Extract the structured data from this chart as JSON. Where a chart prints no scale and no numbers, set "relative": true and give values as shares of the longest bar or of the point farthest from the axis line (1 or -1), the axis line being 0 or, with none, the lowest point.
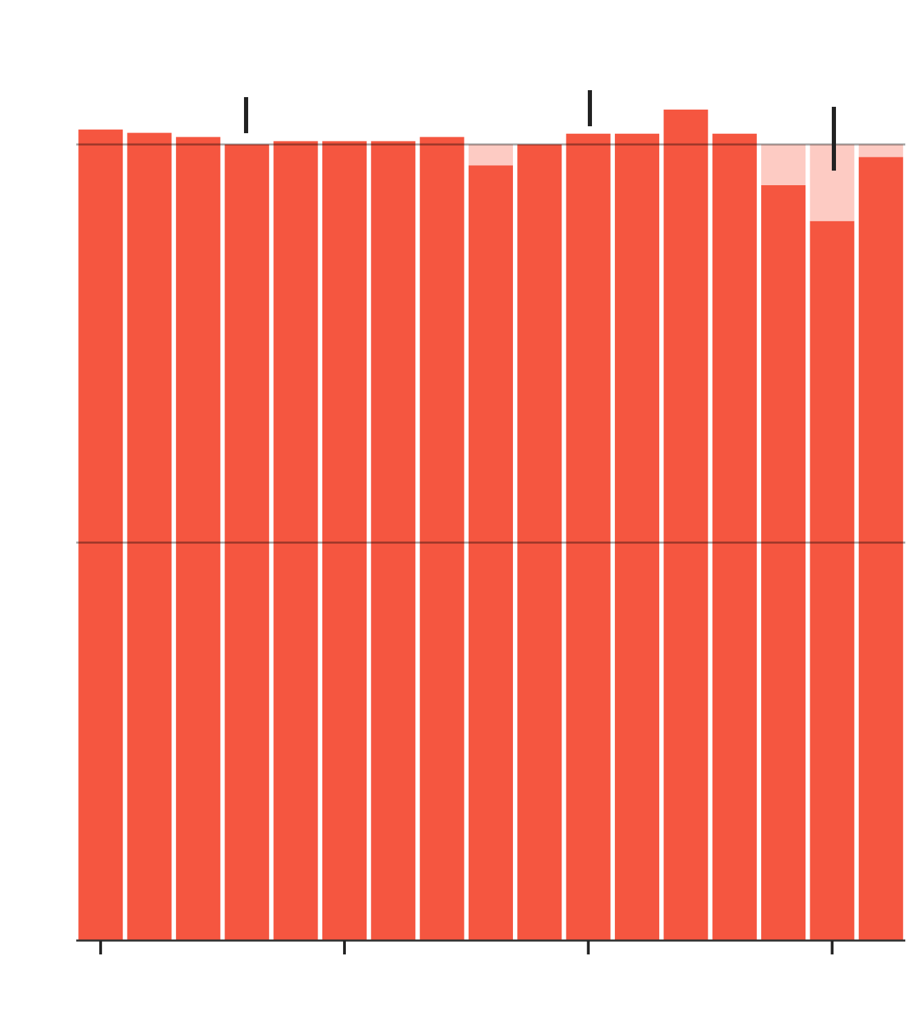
{
  "chart_data": {
    "type": "bar",
    "relative": true,
    "stacked": true,
    "categories": [
      null,
      null,
      null,
      null,
      null,
      null,
      null,
      null,
      null,
      null,
      null,
      null,
      null,
      null,
      null,
      null,
      null
    ],
    "series": [
      {
        "color": "#f55640",
        "values": [
          0.976,
          0.972,
          0.967,
          0.958,
          0.962,
          0.962,
          0.962,
          0.967,
          0.933,
          0.958,
          0.971,
          0.971,
          1,
          0.971,
          0.909,
          0.866,
          0.943
        ]
      },
      {
        "color": "#fdcbc3",
        "values": [
          null,
          null,
          null,
          null,
          null,
          null,
          null,
          null,
          0.025,
          null,
          null,
          null,
          null,
          null,
          0.049,
          0.092,
          0.015
        ]
      }
    ],
    "ref_lines": [
      {
        "axis": "y",
        "value": 0.479
      },
      {
        "axis": "y",
        "value": 0.958
      }
    ]
  }
}
